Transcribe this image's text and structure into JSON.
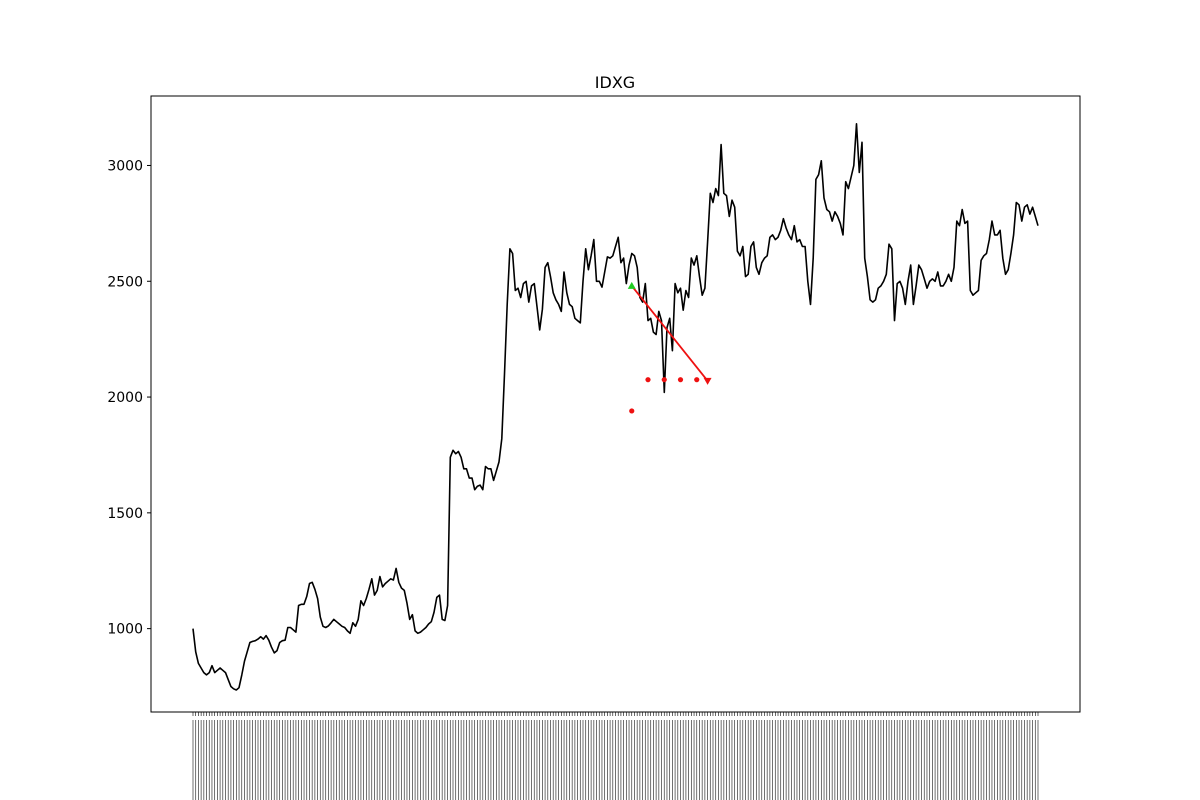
{
  "chart_data": {
    "type": "line",
    "title": "IDXG",
    "xlabel": "",
    "ylabel": "",
    "ylim": [
      640,
      3300
    ],
    "yticks": [
      1000,
      1500,
      2000,
      2500,
      3000
    ],
    "grid": false,
    "legend": "none",
    "colors": {
      "line": "#000000",
      "marker_up": "#22cc22",
      "marker_down": "#ee1111",
      "arrow": "#ee1111"
    },
    "series": [
      {
        "values": [
          1000,
          900,
          850,
          830,
          810,
          800,
          810,
          840,
          810,
          820,
          830,
          820,
          810,
          780,
          750,
          740,
          735,
          745,
          800,
          860,
          900,
          940,
          945,
          948,
          955,
          965,
          955,
          970,
          950,
          920,
          895,
          905,
          940,
          948,
          950,
          1005,
          1005,
          995,
          985,
          1100,
          1105,
          1105,
          1140,
          1195,
          1200,
          1170,
          1130,
          1050,
          1010,
          1005,
          1012,
          1025,
          1040,
          1030,
          1020,
          1010,
          1005,
          990,
          980,
          1025,
          1010,
          1040,
          1120,
          1100,
          1130,
          1170,
          1215,
          1145,
          1165,
          1225,
          1180,
          1195,
          1205,
          1215,
          1210,
          1260,
          1200,
          1175,
          1165,
          1110,
          1040,
          1060,
          990,
          980,
          985,
          995,
          1005,
          1020,
          1030,
          1070,
          1135,
          1145,
          1040,
          1035,
          1100,
          1740,
          1770,
          1755,
          1765,
          1740,
          1690,
          1690,
          1650,
          1650,
          1600,
          1615,
          1620,
          1600,
          1700,
          1690,
          1690,
          1640,
          1680,
          1720,
          1820,
          2100,
          2400,
          2640,
          2620,
          2460,
          2470,
          2430,
          2490,
          2500,
          2410,
          2480,
          2490,
          2390,
          2290,
          2380,
          2560,
          2580,
          2520,
          2450,
          2420,
          2400,
          2370,
          2540,
          2450,
          2400,
          2390,
          2340,
          2330,
          2320,
          2500,
          2640,
          2550,
          2610,
          2680,
          2500,
          2500,
          2475,
          2540,
          2605,
          2600,
          2610,
          2650,
          2690,
          2580,
          2600,
          2490,
          2570,
          2620,
          2610,
          2560,
          2430,
          2410,
          2490,
          2330,
          2340,
          2280,
          2270,
          2370,
          2330,
          2020,
          2300,
          2340,
          2200,
          2490,
          2450,
          2470,
          2375,
          2460,
          2430,
          2600,
          2570,
          2610,
          2520,
          2440,
          2470,
          2670,
          2880,
          2840,
          2900,
          2870,
          3090,
          2880,
          2870,
          2780,
          2850,
          2820,
          2630,
          2610,
          2650,
          2520,
          2530,
          2650,
          2670,
          2560,
          2530,
          2580,
          2600,
          2610,
          2690,
          2700,
          2680,
          2690,
          2720,
          2770,
          2730,
          2700,
          2680,
          2740,
          2670,
          2680,
          2650,
          2650,
          2500,
          2400,
          2600,
          2940,
          2960,
          3020,
          2860,
          2810,
          2800,
          2760,
          2800,
          2780,
          2750,
          2700,
          2930,
          2900,
          2950,
          3000,
          3180,
          2970,
          3100,
          2600,
          2520,
          2420,
          2410,
          2420,
          2470,
          2480,
          2500,
          2530,
          2660,
          2640,
          2330,
          2490,
          2500,
          2470,
          2400,
          2500,
          2570,
          2400,
          2480,
          2570,
          2550,
          2510,
          2470,
          2500,
          2510,
          2500,
          2540,
          2480,
          2480,
          2500,
          2530,
          2500,
          2560,
          2760,
          2740,
          2810,
          2750,
          2760,
          2460,
          2440,
          2450,
          2460,
          2590,
          2610,
          2620,
          2680,
          2760,
          2700,
          2700,
          2720,
          2600,
          2530,
          2550,
          2620,
          2700,
          2840,
          2830,
          2760,
          2820,
          2830,
          2790,
          2820,
          2780,
          2740
        ]
      }
    ],
    "annotations": {
      "up_marker": {
        "index": 162,
        "value": 2480
      },
      "down_marker": {
        "index": 190,
        "value": 2070
      },
      "arrow": {
        "from_index": 162,
        "from_value": 2480,
        "to_index": 190,
        "to_value": 2070
      },
      "dots": [
        {
          "index": 162,
          "value": 1940
        },
        {
          "index": 168,
          "value": 2075
        },
        {
          "index": 174,
          "value": 2075
        },
        {
          "index": 180,
          "value": 2075
        },
        {
          "index": 186,
          "value": 2075
        }
      ]
    }
  }
}
